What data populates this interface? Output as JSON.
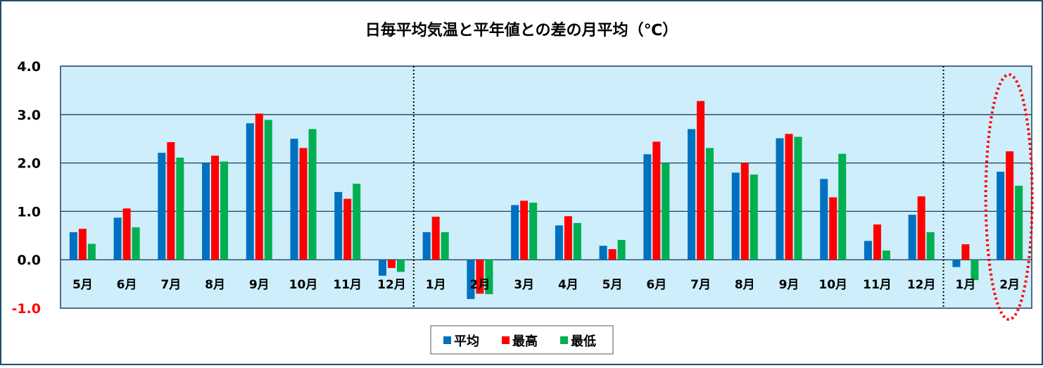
{
  "chart_data": {
    "type": "bar",
    "title": "日毎平均気温と平年値との差の月平均（℃）",
    "xlabel": "",
    "ylabel": "",
    "ylim": [
      -1.0,
      4.0
    ],
    "yticks": [
      "4.0",
      "3.0",
      "2.0",
      "1.0",
      "0.0",
      "-1.0"
    ],
    "ytick_values": [
      4,
      3,
      2,
      1,
      0,
      -1
    ],
    "grid": true,
    "legend_position": "bottom-center",
    "categories": [
      "5月",
      "6月",
      "7月",
      "8月",
      "9月",
      "10月",
      "11月",
      "12月",
      "1月",
      "2月",
      "3月",
      "4月",
      "5月",
      "6月",
      "7月",
      "8月",
      "9月",
      "10月",
      "11月",
      "12月",
      "1月",
      "2月"
    ],
    "series": [
      {
        "name": "平均",
        "color": "#0070c0",
        "values": [
          0.57,
          0.87,
          2.21,
          2.0,
          2.82,
          2.5,
          1.4,
          -0.33,
          0.57,
          -0.81,
          1.13,
          0.71,
          0.29,
          2.18,
          2.7,
          1.8,
          2.51,
          1.67,
          0.39,
          0.93,
          -0.15,
          1.82
        ]
      },
      {
        "name": "最高",
        "color": "#ff0000",
        "values": [
          0.64,
          1.06,
          2.43,
          2.15,
          3.02,
          2.31,
          1.26,
          -0.17,
          0.89,
          -0.7,
          1.22,
          0.9,
          0.22,
          2.44,
          3.28,
          2.0,
          2.6,
          1.29,
          0.73,
          1.31,
          0.32,
          2.24
        ]
      },
      {
        "name": "最低",
        "color": "#00b050",
        "values": [
          0.33,
          0.67,
          2.11,
          2.03,
          2.89,
          2.7,
          1.57,
          -0.25,
          0.57,
          -0.71,
          1.18,
          0.76,
          0.41,
          2.0,
          2.31,
          1.76,
          2.54,
          2.19,
          0.19,
          0.57,
          -0.42,
          1.53
        ]
      }
    ],
    "year_separators_after_index": [
      7,
      19
    ],
    "highlight_index": 21,
    "colors": {
      "plot_bg": "#cdeefa",
      "border": "#1f3f5f",
      "grid": "#1f3f5f",
      "negative_tick": "#ff0000",
      "highlight": "#ff0000"
    }
  }
}
